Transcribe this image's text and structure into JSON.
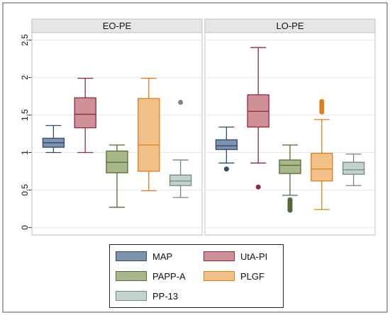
{
  "chart_data": {
    "type": "box",
    "ylim": [
      -0.1,
      2.6
    ],
    "yticks": [
      "0",
      "0.5",
      "1",
      "1.5",
      "2",
      "2.5"
    ],
    "ytick_values": [
      0,
      0.5,
      1,
      1.5,
      2,
      2.5
    ],
    "grid": true,
    "legend_position": "bottom",
    "series": [
      {
        "name": "MAP",
        "fill": "#7f93ad",
        "stroke": "#2e4a6e"
      },
      {
        "name": "UtA-PI",
        "fill": "#cf9097",
        "stroke": "#8e2c3c"
      },
      {
        "name": "PAPP-A",
        "fill": "#a8b88a",
        "stroke": "#55683a"
      },
      {
        "name": "PLGF",
        "fill": "#f2c089",
        "stroke": "#d9801f"
      },
      {
        "name": "PP-13",
        "fill": "#c4d2cc",
        "stroke": "#6f8a80"
      }
    ],
    "panels": [
      {
        "title": "EO-PE",
        "boxes": [
          {
            "series": "MAP",
            "whisker_low": 1.0,
            "q1": 1.07,
            "median": 1.13,
            "q3": 1.19,
            "whisker_high": 1.36,
            "outliers": []
          },
          {
            "series": "UtA-PI",
            "whisker_low": 1.0,
            "q1": 1.33,
            "median": 1.51,
            "q3": 1.73,
            "whisker_high": 1.99,
            "outliers": []
          },
          {
            "series": "PAPP-A",
            "whisker_low": 0.27,
            "q1": 0.73,
            "median": 0.87,
            "q3": 1.02,
            "whisker_high": 1.1,
            "outliers": []
          },
          {
            "series": "PLGF",
            "whisker_low": 0.49,
            "q1": 0.75,
            "median": 1.1,
            "q3": 1.72,
            "whisker_high": 1.99,
            "outliers": []
          },
          {
            "series": "PP-13",
            "whisker_low": 0.4,
            "q1": 0.56,
            "median": 0.62,
            "q3": 0.7,
            "whisker_high": 0.9,
            "outliers": [
              1.67
            ]
          }
        ]
      },
      {
        "title": "LO-PE",
        "boxes": [
          {
            "series": "MAP",
            "whisker_low": 0.86,
            "q1": 1.04,
            "median": 1.09,
            "q3": 1.17,
            "whisker_high": 1.34,
            "outliers": [
              0.78
            ]
          },
          {
            "series": "UtA-PI",
            "whisker_low": 0.86,
            "q1": 1.34,
            "median": 1.55,
            "q3": 1.77,
            "whisker_high": 2.4,
            "outliers": [
              0.54
            ]
          },
          {
            "series": "PAPP-A",
            "whisker_low": 0.43,
            "q1": 0.72,
            "median": 0.83,
            "q3": 0.9,
            "whisker_high": 1.1,
            "outliers": [
              0.23,
              0.25,
              0.27,
              0.29,
              0.31,
              0.33,
              0.35,
              0.37
            ]
          },
          {
            "series": "PLGF",
            "whisker_low": 0.24,
            "q1": 0.62,
            "median": 0.78,
            "q3": 0.99,
            "whisker_high": 1.44,
            "outliers": [
              1.54,
              1.57,
              1.6,
              1.63,
              1.66,
              1.68
            ]
          },
          {
            "series": "PP-13",
            "whisker_low": 0.56,
            "q1": 0.71,
            "median": 0.77,
            "q3": 0.87,
            "whisker_high": 0.98,
            "outliers": []
          }
        ]
      }
    ]
  }
}
